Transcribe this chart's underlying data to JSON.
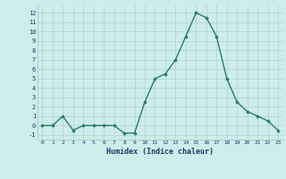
{
  "x": [
    0,
    1,
    2,
    3,
    4,
    5,
    6,
    7,
    8,
    9,
    10,
    11,
    12,
    13,
    14,
    15,
    16,
    17,
    18,
    19,
    20,
    21,
    22,
    23
  ],
  "y": [
    0,
    0,
    1,
    -0.5,
    0,
    0,
    0,
    0,
    -0.8,
    -0.8,
    2.5,
    5,
    5.5,
    7,
    9.5,
    12,
    11.5,
    9.5,
    5,
    2.5,
    1.5,
    1,
    0.5,
    -0.5
  ],
  "line_color": "#2a7a6a",
  "marker": "D",
  "marker_size": 1.8,
  "bg_color": "#ceecea",
  "grid_color": "#aed4d0",
  "xlabel": "Humidex (Indice chaleur)",
  "ylim": [
    -1.5,
    12.8
  ],
  "xlim": [
    -0.5,
    23.5
  ],
  "yticks": [
    -1,
    0,
    1,
    2,
    3,
    4,
    5,
    6,
    7,
    8,
    9,
    10,
    11,
    12
  ],
  "xticks": [
    0,
    1,
    2,
    3,
    4,
    5,
    6,
    7,
    8,
    9,
    10,
    11,
    12,
    13,
    14,
    15,
    16,
    17,
    18,
    19,
    20,
    21,
    22,
    23
  ],
  "font_color": "#1a3a6a",
  "line_width": 1.0
}
